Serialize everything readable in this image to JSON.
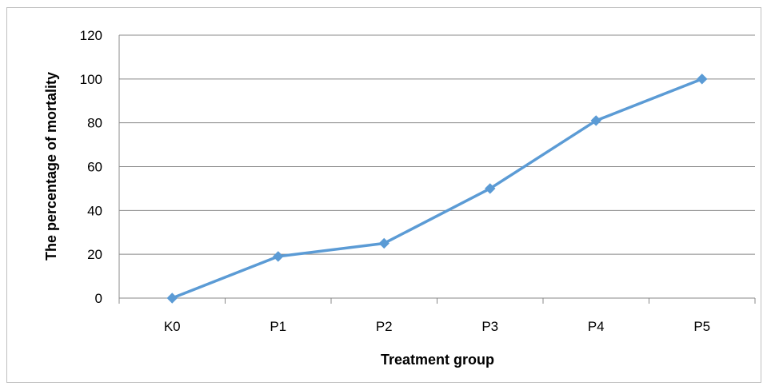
{
  "chart_data": {
    "type": "line",
    "title": "",
    "xlabel": "Treatment group",
    "ylabel": "The percentage of mortality",
    "categories": [
      "K0",
      "P1",
      "P2",
      "P3",
      "P4",
      "P5"
    ],
    "series": [
      {
        "values": [
          0,
          19,
          25,
          50,
          81,
          100
        ]
      }
    ],
    "ylim": [
      0,
      120
    ],
    "yticks": [
      "0",
      "20",
      "40",
      "60",
      "80",
      "100",
      "120"
    ],
    "grid": true,
    "legend": "none",
    "colors": {
      "line": "#5b9bd5",
      "grid": "#898989",
      "axis": "#898989"
    }
  }
}
